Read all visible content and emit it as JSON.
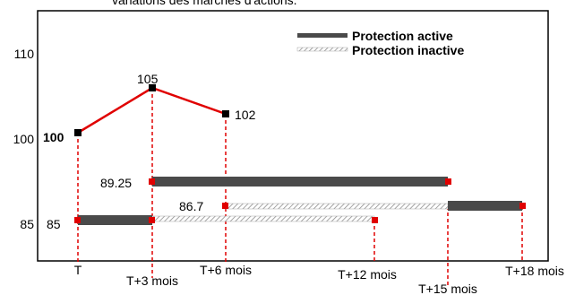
{
  "header": {
    "title": "variations des marchés d'actions."
  },
  "legend": {
    "items": [
      {
        "label": "Protection active"
      },
      {
        "label": "Protection inactive"
      }
    ]
  },
  "y_axis": {
    "labels": [
      "110",
      "100",
      "85"
    ]
  },
  "x_axis": {
    "labels": [
      "T",
      "T+3 mois",
      "T+6 mois",
      "T+12 mois",
      "T+15 mois",
      "T+18 mois"
    ]
  },
  "point_labels": [
    "100",
    "105",
    "102",
    "89.25",
    "86.7",
    "85"
  ]
}
